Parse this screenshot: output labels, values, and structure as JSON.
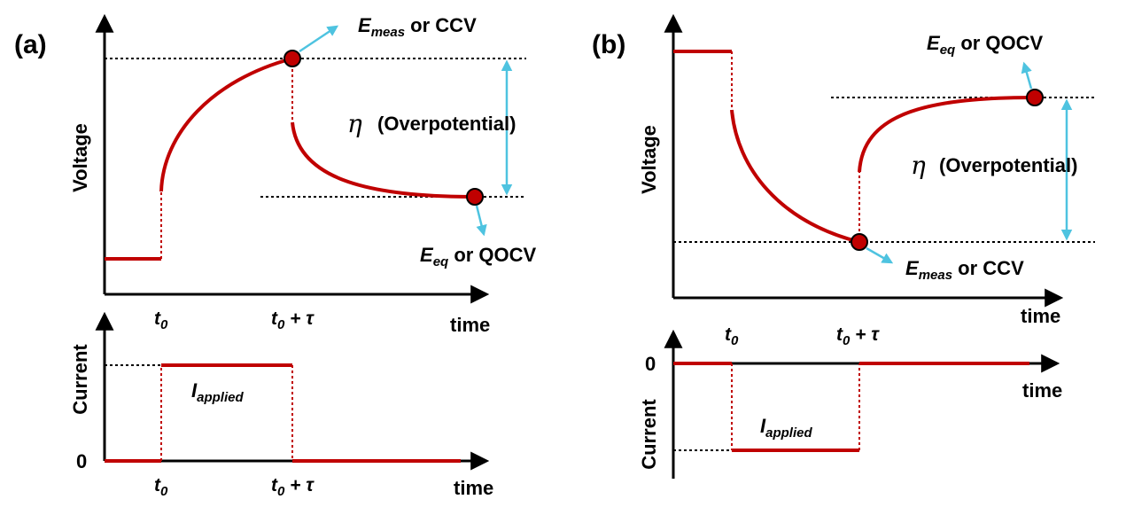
{
  "figure": {
    "colors": {
      "curve": "#c00000",
      "marker": "#c00000",
      "arrow": "#4ec3e0",
      "guide": "#000000",
      "axis": "#000000"
    },
    "panel_a": {
      "label": "(a)",
      "voltage_axis": "Voltage",
      "current_axis": "Current",
      "time_label": "time",
      "time_label_current": "time",
      "t0": "t",
      "t0_sub": "0",
      "t0_current": "t",
      "t0_current_sub": "0",
      "t0_tau": "t",
      "t0_tau_sub": "0",
      "t0_tau_rest": " + τ",
      "t0_tau_current": "t",
      "t0_tau_current_sub": "0",
      "t0_tau_current_rest": " + τ",
      "emeas": "E",
      "emeas_sub": "meas",
      "emeas_rest": " or CCV",
      "eeq": "E",
      "eeq_sub": "eq",
      "eeq_rest": " or QOCV",
      "eta": "η",
      "overpotential": "(Overpotential)",
      "iapplied": "I",
      "iapplied_sub": "applied",
      "zero": "0"
    },
    "panel_b": {
      "label": "(b)",
      "voltage_axis": "Voltage",
      "current_axis": "Current",
      "time_label": "time",
      "time_label_current": "time",
      "t0": "t",
      "t0_sub": "0",
      "t0_tau": "t",
      "t0_tau_sub": "0",
      "t0_tau_rest": " + τ",
      "emeas": "E",
      "emeas_sub": "meas",
      "emeas_rest": " or CCV",
      "eeq": "E",
      "eeq_sub": "eq",
      "eeq_rest": " or QOCV",
      "eta": "η",
      "overpotential": "(Overpotential)",
      "iapplied": "I",
      "iapplied_sub": "applied",
      "zero": "0"
    }
  }
}
